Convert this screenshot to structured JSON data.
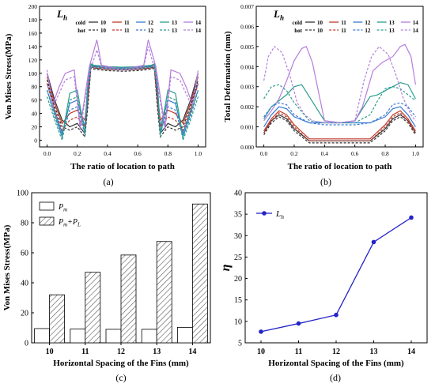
{
  "chart_data": [
    {
      "panel": "(a)",
      "type": "line",
      "xlabel": "The ratio of location to path",
      "ylabel": "Von Mises Stress(MPa)",
      "xlim": [
        -0.05,
        1.05
      ],
      "ylim": [
        -10,
        200
      ],
      "xticks": [
        "0.0",
        "0.2",
        "0.4",
        "0.6",
        "0.8",
        "1.0"
      ],
      "yticks": [
        "0",
        "20",
        "40",
        "60",
        "80",
        "100",
        "120",
        "140",
        "160",
        "180",
        "200"
      ],
      "legend_title": "L",
      "legend_title_sub": "h",
      "legend_row_labels": [
        "cold",
        "hot"
      ],
      "legend_values": [
        "10",
        "11",
        "12",
        "13",
        "14"
      ],
      "grid": false,
      "series": [
        {
          "name": "cold 10",
          "color": "#333333",
          "dash": "solid",
          "x": [
            0,
            0.05,
            0.1,
            0.15,
            0.2,
            0.25,
            0.27,
            0.29,
            0.31,
            0.4,
            0.5,
            0.6,
            0.69,
            0.71,
            0.73,
            0.75,
            0.8,
            0.85,
            0.9,
            0.95,
            1.0
          ],
          "y": [
            100,
            60,
            30,
            20,
            25,
            10,
            60,
            110,
            108,
            106,
            105,
            106,
            108,
            110,
            60,
            10,
            25,
            20,
            30,
            60,
            100
          ]
        },
        {
          "name": "cold 11",
          "color": "#c0392b",
          "dash": "solid",
          "x": [
            0,
            0.05,
            0.1,
            0.15,
            0.2,
            0.25,
            0.27,
            0.29,
            0.31,
            0.4,
            0.5,
            0.6,
            0.69,
            0.71,
            0.73,
            0.75,
            0.8,
            0.85,
            0.9,
            0.95,
            1.0
          ],
          "y": [
            95,
            55,
            25,
            40,
            45,
            30,
            70,
            112,
            110,
            108,
            107,
            108,
            110,
            112,
            70,
            30,
            45,
            40,
            25,
            55,
            95
          ]
        },
        {
          "name": "cold 12",
          "color": "#3a7bd5",
          "dash": "solid",
          "x": [
            0,
            0.05,
            0.1,
            0.15,
            0.2,
            0.25,
            0.27,
            0.29,
            0.31,
            0.4,
            0.5,
            0.6,
            0.69,
            0.71,
            0.73,
            0.75,
            0.8,
            0.85,
            0.9,
            0.95,
            1.0
          ],
          "y": [
            85,
            45,
            10,
            55,
            60,
            20,
            80,
            113,
            111,
            109,
            108,
            109,
            111,
            113,
            80,
            20,
            60,
            55,
            10,
            45,
            85
          ]
        },
        {
          "name": "cold 13",
          "color": "#2a9d8f",
          "dash": "solid",
          "x": [
            0,
            0.05,
            0.1,
            0.15,
            0.2,
            0.25,
            0.27,
            0.29,
            0.31,
            0.4,
            0.5,
            0.6,
            0.69,
            0.71,
            0.73,
            0.75,
            0.8,
            0.85,
            0.9,
            0.95,
            1.0
          ],
          "y": [
            75,
            40,
            5,
            70,
            75,
            10,
            90,
            114,
            112,
            110,
            109,
            110,
            112,
            114,
            90,
            10,
            75,
            70,
            5,
            40,
            75
          ]
        },
        {
          "name": "cold 14",
          "color": "#b57edc",
          "dash": "solid",
          "x": [
            0,
            0.04,
            0.08,
            0.12,
            0.18,
            0.22,
            0.28,
            0.33,
            0.36,
            0.45,
            0.5,
            0.55,
            0.64,
            0.67,
            0.72,
            0.78,
            0.82,
            0.88,
            0.92,
            0.96,
            1.0
          ],
          "y": [
            100,
            55,
            80,
            100,
            105,
            20,
            110,
            150,
            112,
            108,
            107,
            108,
            112,
            150,
            110,
            20,
            105,
            100,
            80,
            55,
            100
          ]
        },
        {
          "name": "hot 10",
          "color": "#333333",
          "dash": "dashed",
          "x": [
            0,
            0.05,
            0.1,
            0.15,
            0.2,
            0.25,
            0.27,
            0.29,
            0.31,
            0.4,
            0.5,
            0.6,
            0.69,
            0.71,
            0.73,
            0.75,
            0.8,
            0.85,
            0.9,
            0.95,
            1.0
          ],
          "y": [
            90,
            50,
            20,
            15,
            20,
            5,
            50,
            108,
            106,
            104,
            103,
            104,
            106,
            108,
            50,
            5,
            20,
            15,
            20,
            50,
            90
          ]
        },
        {
          "name": "hot 11",
          "color": "#c0392b",
          "dash": "dashed",
          "x": [
            0,
            0.05,
            0.1,
            0.15,
            0.2,
            0.25,
            0.27,
            0.29,
            0.31,
            0.4,
            0.5,
            0.6,
            0.69,
            0.71,
            0.73,
            0.75,
            0.8,
            0.85,
            0.9,
            0.95,
            1.0
          ],
          "y": [
            85,
            45,
            15,
            30,
            35,
            20,
            60,
            110,
            108,
            106,
            105,
            106,
            108,
            110,
            60,
            20,
            35,
            30,
            15,
            45,
            85
          ]
        },
        {
          "name": "hot 12",
          "color": "#3a7bd5",
          "dash": "dashed",
          "x": [
            0,
            0.05,
            0.1,
            0.15,
            0.2,
            0.25,
            0.27,
            0.29,
            0.31,
            0.4,
            0.5,
            0.6,
            0.69,
            0.71,
            0.73,
            0.75,
            0.8,
            0.85,
            0.9,
            0.95,
            1.0
          ],
          "y": [
            75,
            35,
            5,
            45,
            50,
            10,
            70,
            111,
            109,
            107,
            106,
            107,
            109,
            111,
            70,
            10,
            50,
            45,
            5,
            35,
            75
          ]
        },
        {
          "name": "hot 13",
          "color": "#2a9d8f",
          "dash": "dashed",
          "x": [
            0,
            0.05,
            0.1,
            0.15,
            0.2,
            0.25,
            0.27,
            0.29,
            0.31,
            0.4,
            0.5,
            0.6,
            0.69,
            0.71,
            0.73,
            0.75,
            0.8,
            0.85,
            0.9,
            0.95,
            1.0
          ],
          "y": [
            65,
            30,
            0,
            60,
            65,
            5,
            80,
            112,
            110,
            108,
            107,
            108,
            110,
            112,
            80,
            5,
            65,
            60,
            0,
            30,
            65
          ]
        },
        {
          "name": "hot 14",
          "color": "#b57edc",
          "dash": "dashed",
          "x": [
            0,
            0.04,
            0.08,
            0.12,
            0.18,
            0.22,
            0.28,
            0.33,
            0.36,
            0.45,
            0.5,
            0.55,
            0.64,
            0.67,
            0.72,
            0.78,
            0.82,
            0.88,
            0.92,
            0.96,
            1.0
          ],
          "y": [
            105,
            50,
            70,
            90,
            95,
            15,
            100,
            135,
            110,
            106,
            105,
            106,
            110,
            140,
            100,
            15,
            95,
            90,
            70,
            50,
            105
          ]
        }
      ]
    },
    {
      "panel": "(b)",
      "type": "line",
      "xlabel": "The ratio of location to path",
      "ylabel": "Total Deformation (mm)",
      "xlim": [
        -0.05,
        1.05
      ],
      "ylim": [
        0,
        0.007
      ],
      "xticks": [
        "0.0",
        "0.2",
        "0.4",
        "0.6",
        "0.8",
        "1.0"
      ],
      "yticks": [
        "0.000",
        "0.001",
        "0.002",
        "0.003",
        "0.004",
        "0.005",
        "0.006",
        "0.007"
      ],
      "legend_title": "L",
      "legend_title_sub": "h",
      "legend_row_labels": [
        "cold",
        "hot"
      ],
      "legend_values": [
        "10",
        "11",
        "12",
        "13",
        "14"
      ],
      "grid": false,
      "series": [
        {
          "name": "cold 10",
          "color": "#333333",
          "dash": "solid",
          "x": [
            0,
            0.05,
            0.1,
            0.15,
            0.2,
            0.3,
            0.4,
            0.5,
            0.6,
            0.7,
            0.8,
            0.85,
            0.9,
            0.95,
            1.0
          ],
          "y": [
            0.0007,
            0.0013,
            0.0016,
            0.0014,
            0.0009,
            0.0003,
            0.0003,
            0.0003,
            0.0003,
            0.0003,
            0.0009,
            0.0014,
            0.0016,
            0.0013,
            0.0007
          ]
        },
        {
          "name": "cold 11",
          "color": "#c0392b",
          "dash": "solid",
          "x": [
            0,
            0.05,
            0.1,
            0.15,
            0.2,
            0.3,
            0.4,
            0.5,
            0.6,
            0.7,
            0.8,
            0.85,
            0.9,
            0.95,
            1.0
          ],
          "y": [
            0.0008,
            0.0014,
            0.0018,
            0.0016,
            0.0011,
            0.0004,
            0.0004,
            0.0004,
            0.0004,
            0.0004,
            0.0011,
            0.0016,
            0.0018,
            0.0014,
            0.0008
          ]
        },
        {
          "name": "cold 12",
          "color": "#3a7bd5",
          "dash": "solid",
          "x": [
            0,
            0.05,
            0.1,
            0.15,
            0.2,
            0.3,
            0.4,
            0.5,
            0.6,
            0.7,
            0.8,
            0.85,
            0.9,
            0.95,
            1.0
          ],
          "y": [
            0.001,
            0.0016,
            0.002,
            0.0019,
            0.0015,
            0.0012,
            0.0012,
            0.0012,
            0.0012,
            0.0012,
            0.0015,
            0.0019,
            0.002,
            0.0016,
            0.001
          ]
        },
        {
          "name": "cold 13",
          "color": "#2a9d8f",
          "dash": "solid",
          "x": [
            0,
            0.05,
            0.1,
            0.15,
            0.2,
            0.25,
            0.3,
            0.4,
            0.5,
            0.6,
            0.7,
            0.75,
            0.8,
            0.85,
            0.9,
            0.95,
            1.0
          ],
          "y": [
            0.0014,
            0.002,
            0.0023,
            0.0026,
            0.003,
            0.0031,
            0.0025,
            0.0013,
            0.0012,
            0.0013,
            0.0025,
            0.0026,
            0.0028,
            0.003,
            0.0032,
            0.0031,
            0.0024
          ]
        },
        {
          "name": "cold 14",
          "color": "#b57edc",
          "dash": "solid",
          "x": [
            0,
            0.05,
            0.1,
            0.15,
            0.2,
            0.25,
            0.28,
            0.32,
            0.4,
            0.5,
            0.6,
            0.65,
            0.72,
            0.78,
            0.85,
            0.9,
            0.93,
            0.97,
            1.0
          ],
          "y": [
            0.0013,
            0.0018,
            0.0024,
            0.0033,
            0.0043,
            0.0049,
            0.005,
            0.0042,
            0.0013,
            0.0012,
            0.0013,
            0.002,
            0.0038,
            0.0042,
            0.0045,
            0.005,
            0.0051,
            0.0045,
            0.0031
          ]
        },
        {
          "name": "hot 10",
          "color": "#333333",
          "dash": "dashed",
          "x": [
            0,
            0.05,
            0.1,
            0.15,
            0.2,
            0.3,
            0.4,
            0.5,
            0.6,
            0.7,
            0.8,
            0.85,
            0.9,
            0.95,
            1.0
          ],
          "y": [
            0.0006,
            0.0012,
            0.0015,
            0.0013,
            0.0008,
            0.0002,
            0.0002,
            0.0002,
            0.0002,
            0.0002,
            0.0008,
            0.0013,
            0.0015,
            0.0012,
            0.0006
          ]
        },
        {
          "name": "hot 11",
          "color": "#c0392b",
          "dash": "dashed",
          "x": [
            0,
            0.05,
            0.1,
            0.15,
            0.2,
            0.3,
            0.4,
            0.5,
            0.6,
            0.7,
            0.8,
            0.85,
            0.9,
            0.95,
            1.0
          ],
          "y": [
            0.0007,
            0.0013,
            0.0017,
            0.0015,
            0.001,
            0.0003,
            0.0003,
            0.0003,
            0.0003,
            0.0003,
            0.001,
            0.0015,
            0.0017,
            0.0013,
            0.0007
          ]
        },
        {
          "name": "hot 12",
          "color": "#3a7bd5",
          "dash": "dashed",
          "x": [
            0,
            0.05,
            0.1,
            0.15,
            0.2,
            0.3,
            0.4,
            0.5,
            0.6,
            0.7,
            0.8,
            0.85,
            0.9,
            0.95,
            1.0
          ],
          "y": [
            0.0015,
            0.002,
            0.0022,
            0.0021,
            0.0016,
            0.0012,
            0.0011,
            0.0011,
            0.0011,
            0.0012,
            0.0016,
            0.0021,
            0.0022,
            0.002,
            0.0015
          ]
        },
        {
          "name": "hot 13",
          "color": "#2a9d8f",
          "dash": "dashed",
          "x": [
            0,
            0.05,
            0.1,
            0.15,
            0.2,
            0.3,
            0.4,
            0.5,
            0.6,
            0.7,
            0.75,
            0.8,
            0.85,
            0.9,
            0.95,
            1.0
          ],
          "y": [
            0.0024,
            0.003,
            0.0031,
            0.0028,
            0.0022,
            0.0013,
            0.0012,
            0.0012,
            0.0012,
            0.0016,
            0.0023,
            0.0029,
            0.003,
            0.0029,
            0.0026,
            0.0023
          ]
        },
        {
          "name": "hot 14",
          "color": "#b57edc",
          "dash": "dashed",
          "x": [
            0,
            0.03,
            0.07,
            0.12,
            0.17,
            0.22,
            0.27,
            0.32,
            0.4,
            0.5,
            0.6,
            0.66,
            0.71,
            0.76,
            0.82,
            0.87,
            0.92,
            0.97,
            1.0
          ],
          "y": [
            0.0033,
            0.0045,
            0.005,
            0.0047,
            0.0036,
            0.0022,
            0.0016,
            0.0013,
            0.0012,
            0.0012,
            0.0013,
            0.0033,
            0.0045,
            0.005,
            0.0046,
            0.0036,
            0.0024,
            0.0016,
            0.0013
          ]
        }
      ]
    },
    {
      "panel": "(c)",
      "type": "bar",
      "xlabel": "Horizontal Spacing of the Fins (mm)",
      "ylabel": "Von Mises Stress(MPa)",
      "categories": [
        "10",
        "11",
        "12",
        "13",
        "14"
      ],
      "ylim": [
        0,
        100
      ],
      "yticks": [
        "0",
        "20",
        "40",
        "60",
        "80",
        "100"
      ],
      "legend_entries": [
        {
          "main": "P",
          "sub": "m",
          "rest": ""
        },
        {
          "main": "P",
          "sub": "m",
          "rest": "+P",
          "sub2": "L"
        }
      ],
      "series": [
        {
          "values": [
            9.5,
            9.2,
            9.0,
            9.0,
            10.3
          ]
        },
        {
          "values": [
            32,
            47,
            58.5,
            67.5,
            92.5
          ]
        }
      ]
    },
    {
      "panel": "(d)",
      "type": "line",
      "xlabel": "Horizontal Spacing of the Fins (mm)",
      "ylabel": "η",
      "categories": [
        "10",
        "11",
        "12",
        "13",
        "14"
      ],
      "ylim": [
        5,
        40
      ],
      "yticks": [
        "5",
        "10",
        "15",
        "20",
        "25",
        "30",
        "35",
        "40"
      ],
      "legend_entry": {
        "main": "L",
        "sub": "h"
      },
      "color": "#2323c8",
      "series": [
        {
          "values": [
            7.6,
            9.5,
            11.5,
            28.5,
            34.2
          ]
        }
      ]
    }
  ]
}
